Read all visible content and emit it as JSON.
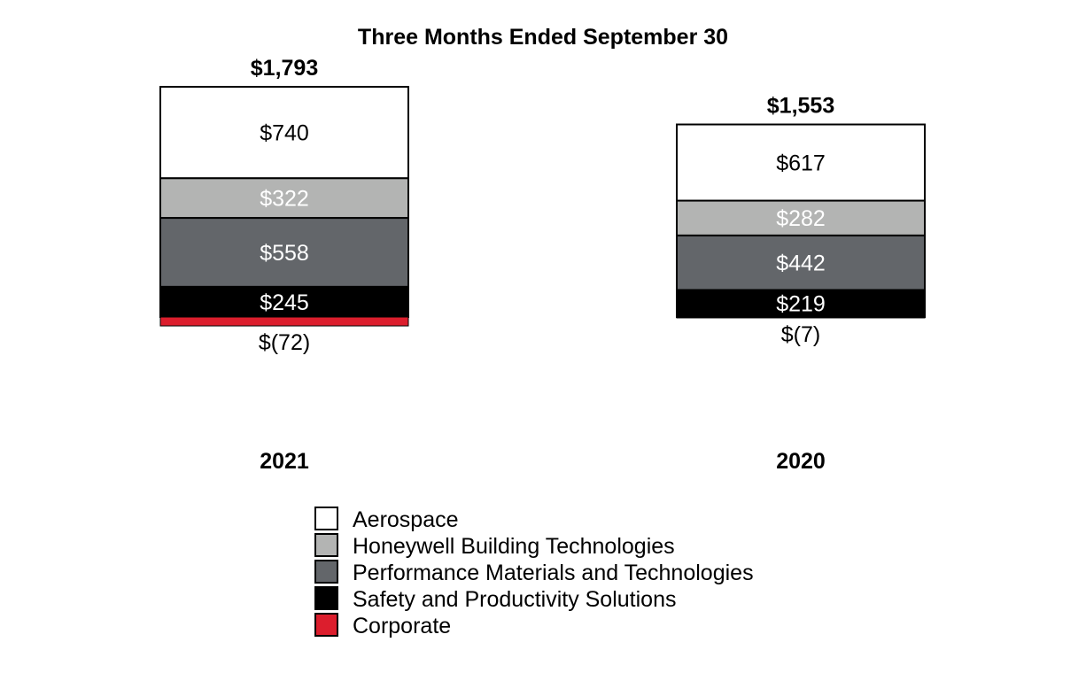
{
  "chart_data": {
    "type": "bar",
    "stacked": true,
    "title": "Three Months Ended September 30",
    "categories": [
      "2021",
      "2020"
    ],
    "totals": [
      "$1,793",
      "$1,553"
    ],
    "series": [
      {
        "name": "Aerospace",
        "values": [
          740,
          617
        ],
        "labels": [
          "$740",
          "$617"
        ],
        "color": "#ffffff",
        "label_color": "#000000"
      },
      {
        "name": "Honeywell Building Technologies",
        "values": [
          322,
          282
        ],
        "labels": [
          "$322",
          "$282"
        ],
        "color": "#b3b4b3",
        "label_color": "#ffffff"
      },
      {
        "name": "Performance Materials and Technologies",
        "values": [
          558,
          442
        ],
        "labels": [
          "$558",
          "$442"
        ],
        "color": "#63666a",
        "label_color": "#ffffff"
      },
      {
        "name": "Safety and Productivity Solutions",
        "values": [
          245,
          219
        ],
        "labels": [
          "$245",
          "$219"
        ],
        "color": "#000000",
        "label_color": "#ffffff"
      },
      {
        "name": "Corporate",
        "values": [
          -72,
          -7
        ],
        "labels": [
          "$(72)",
          "$(7)"
        ],
        "color": "#dc1e2d",
        "label_color": "#000000"
      }
    ],
    "legend": "bottom-center",
    "grid": false
  }
}
